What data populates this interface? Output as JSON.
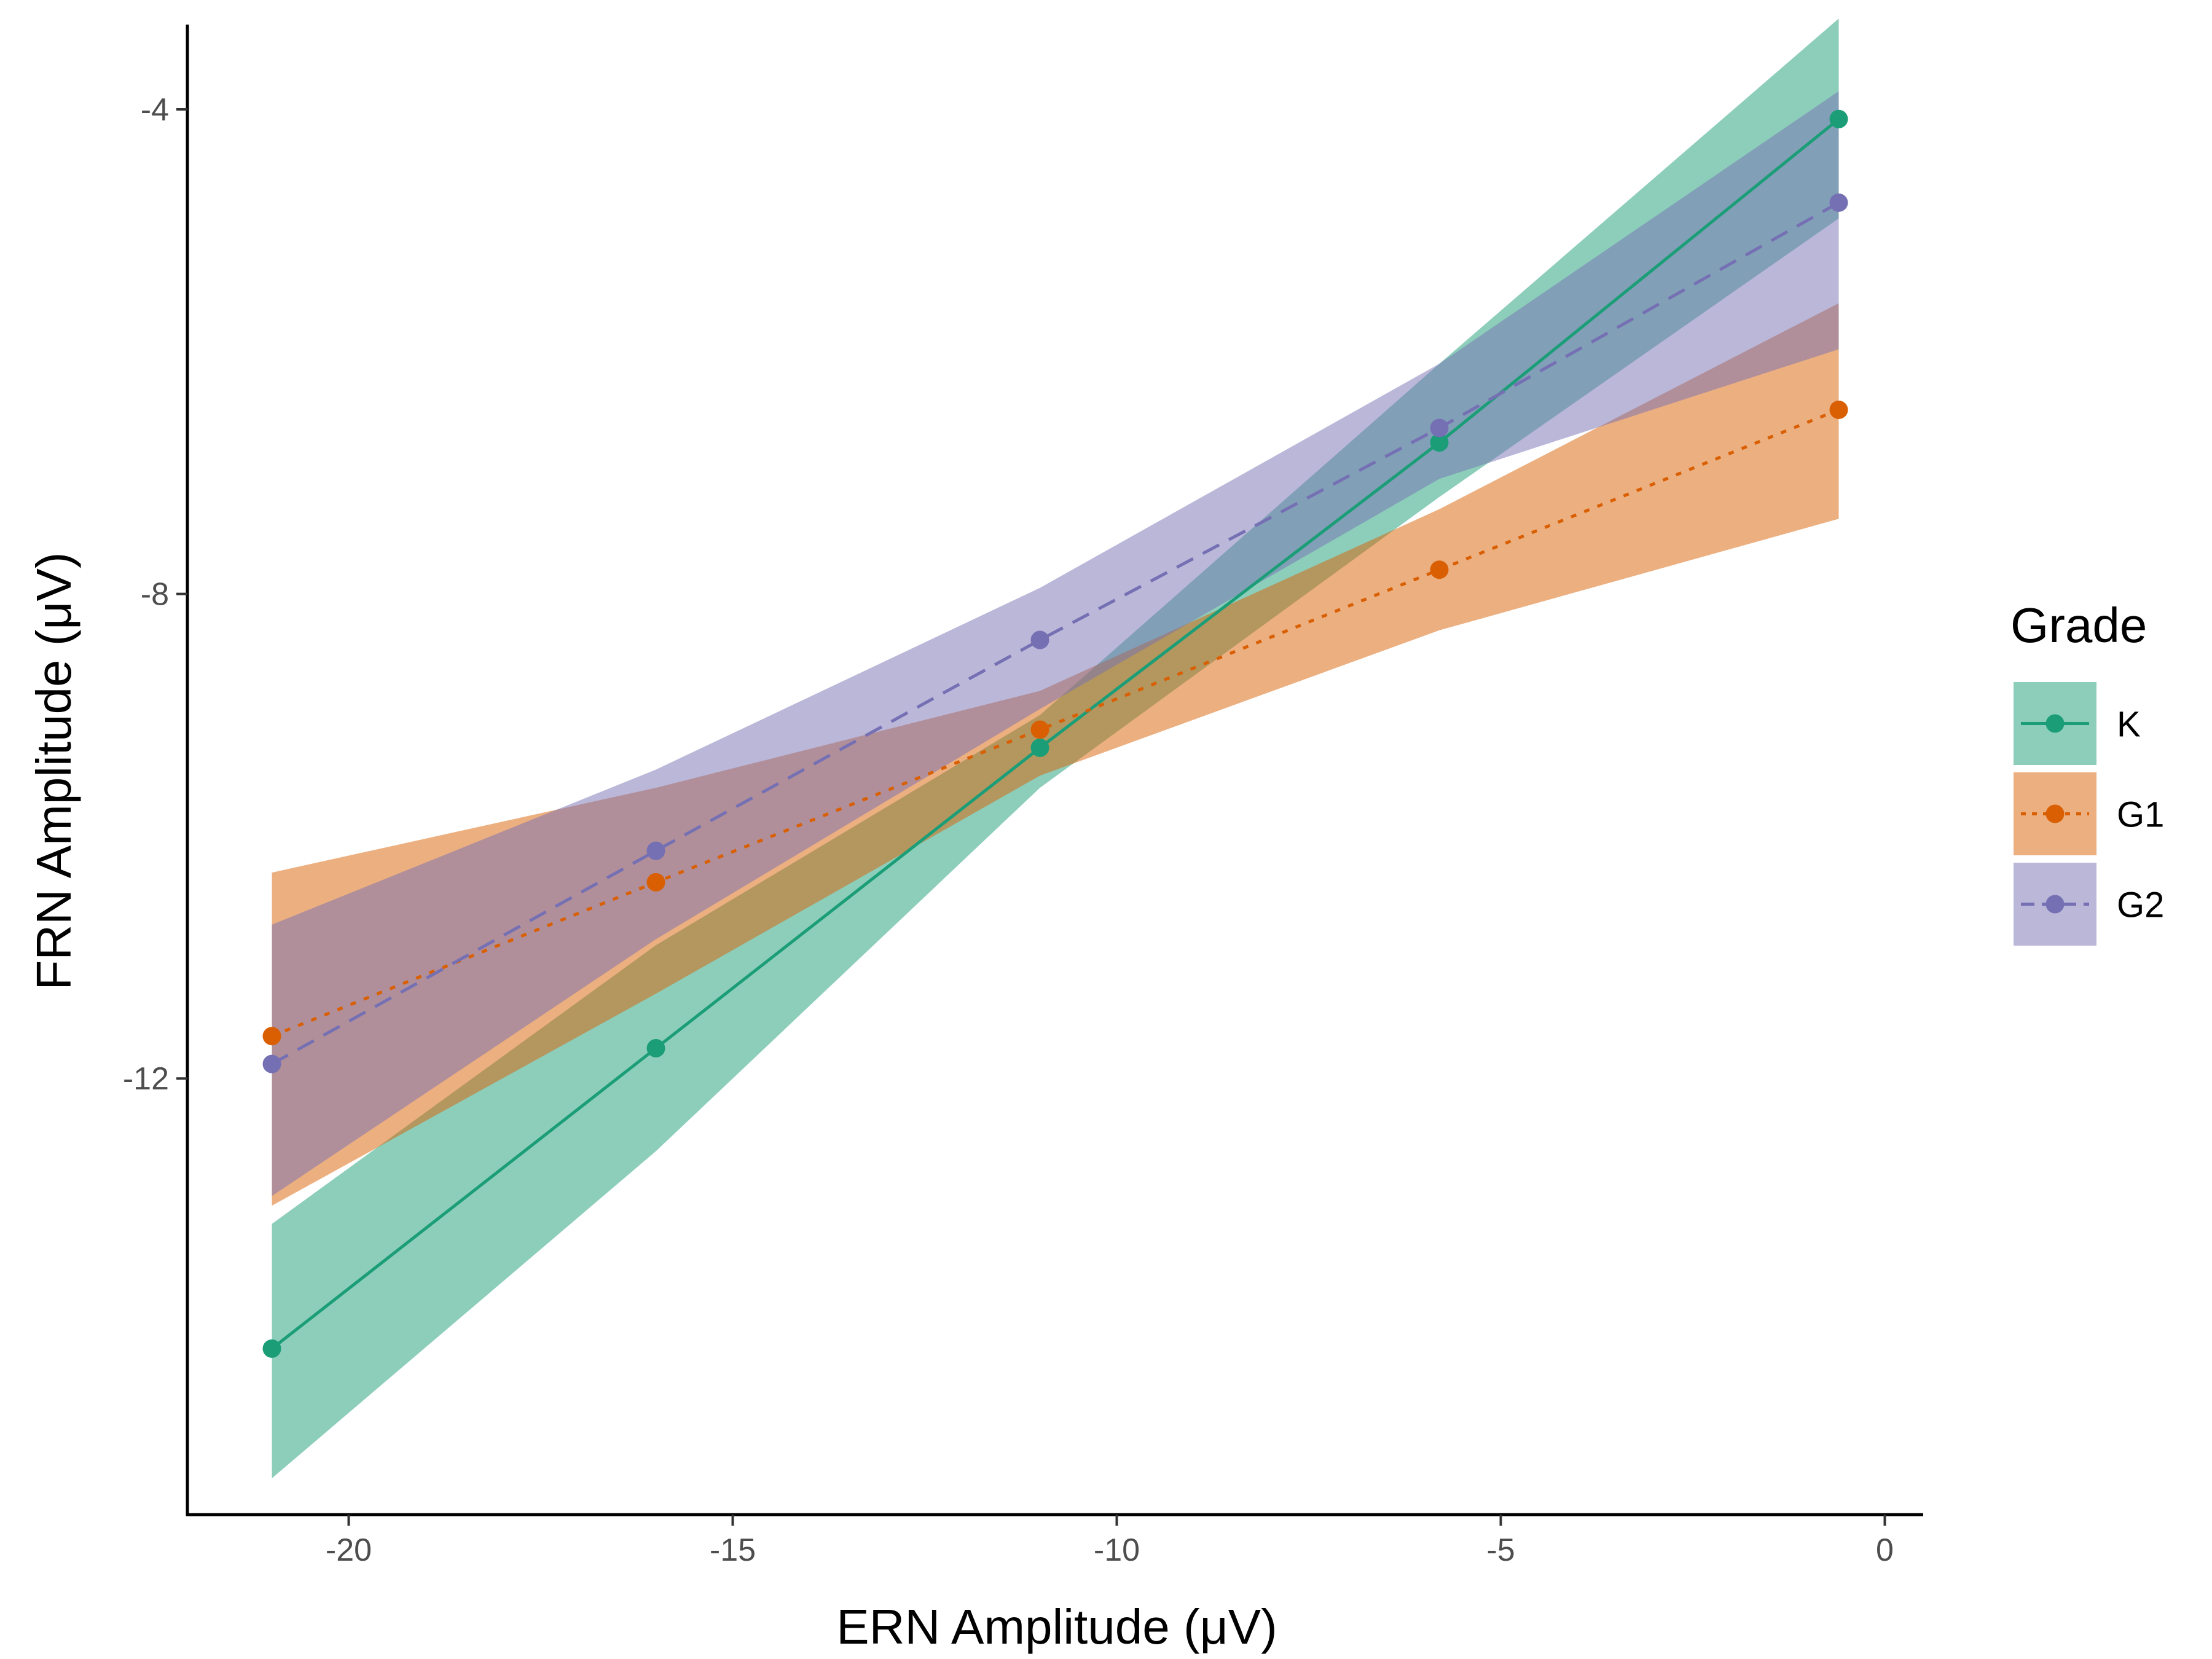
{
  "chart_data": {
    "type": "line",
    "title": "",
    "xlabel": "ERN Amplitude (μV)",
    "ylabel": "FRN Amplitude (μV)",
    "xlim": [
      -22.1,
      0.5
    ],
    "ylim": [
      -15.6,
      -3.3
    ],
    "xticks": [
      -20,
      -15,
      -10,
      -5,
      0
    ],
    "xtick_labels": [
      "-20",
      "-15",
      "-10",
      "-5",
      "0"
    ],
    "yticks": [
      -12,
      -8,
      -4
    ],
    "ytick_labels": [
      "-12",
      "-8",
      "-4"
    ],
    "grid": false,
    "legend": {
      "title": "Grade",
      "position": "right"
    },
    "series": [
      {
        "name": "K",
        "color": "#1b9e77",
        "dash": "solid",
        "x": [
          -21,
          -16,
          -11,
          -5.8,
          -0.6
        ],
        "y": [
          -14.23,
          -11.75,
          -9.27,
          -6.75,
          -4.08
        ],
        "ribbon_lower": [
          -15.3,
          -12.6,
          -9.6,
          -7.2,
          -4.9
        ],
        "ribbon_upper": [
          -13.2,
          -10.9,
          -9.0,
          -6.1,
          -3.25
        ]
      },
      {
        "name": "G1",
        "color": "#d95f02",
        "dash": "dotted",
        "x": [
          -21,
          -16,
          -11,
          -5.8,
          -0.6
        ],
        "y": [
          -11.65,
          -10.38,
          -9.12,
          -7.8,
          -6.48
        ],
        "ribbon_lower": [
          -13.05,
          -11.3,
          -9.5,
          -8.3,
          -7.38
        ],
        "ribbon_upper": [
          -10.3,
          -9.6,
          -8.8,
          -7.3,
          -5.6
        ]
      },
      {
        "name": "G2",
        "color": "#7570b3",
        "dash": "dashed",
        "x": [
          -21,
          -16,
          -11,
          -5.8,
          -0.6
        ],
        "y": [
          -11.88,
          -10.12,
          -8.38,
          -6.63,
          -4.77
        ],
        "ribbon_lower": [
          -12.97,
          -10.85,
          -8.95,
          -7.05,
          -5.98
        ],
        "ribbon_upper": [
          -10.73,
          -9.45,
          -7.95,
          -6.1,
          -3.85
        ]
      }
    ]
  }
}
